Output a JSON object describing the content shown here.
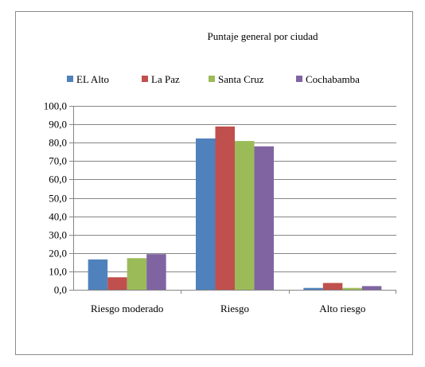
{
  "chart_data": {
    "type": "bar",
    "title": "Puntaje general por ciudad",
    "xlabel": "",
    "ylabel": "",
    "categories": [
      "Riesgo moderado",
      "Riesgo",
      "Alto riesgo"
    ],
    "series": [
      {
        "name": "EL Alto",
        "color": "#4f81bd",
        "values": [
          16.5,
          82.3,
          1.0
        ]
      },
      {
        "name": "La Paz",
        "color": "#c0504d",
        "values": [
          6.8,
          88.8,
          3.7
        ]
      },
      {
        "name": "Santa Cruz",
        "color": "#9bbb59",
        "values": [
          17.2,
          80.9,
          1.0
        ]
      },
      {
        "name": "Cochabamba",
        "color": "#8064a2",
        "values": [
          19.4,
          78.0,
          2.0
        ]
      }
    ],
    "ylim": [
      0,
      100
    ],
    "yticks": [
      0,
      10,
      20,
      30,
      40,
      50,
      60,
      70,
      80,
      90,
      100
    ],
    "ytick_labels": [
      "0,0",
      "10,0",
      "20,0",
      "30,0",
      "40,0",
      "50,0",
      "60,0",
      "70,0",
      "80,0",
      "90,0",
      "100,0"
    ],
    "grid": true,
    "legend_position": "top"
  }
}
